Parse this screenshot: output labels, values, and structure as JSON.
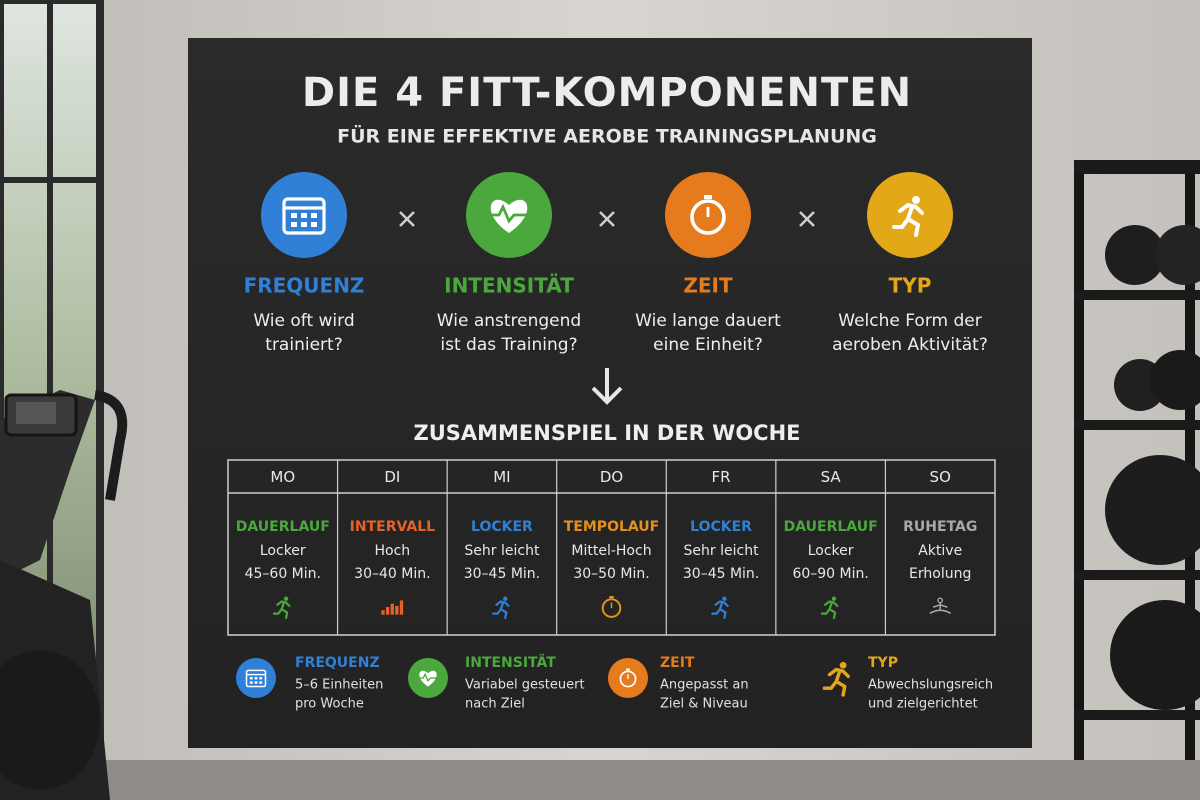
{
  "title": "DIE 4 FITT-KOMPONENTEN",
  "subtitle": "FÜR EINE EFFEKTIVE AEROBE TRAININGSPLANUNG",
  "components": [
    {
      "name": "FREQUENZ",
      "question": [
        "Wie oft wird",
        "trainiert?"
      ]
    },
    {
      "name": "INTENSITÄT",
      "question": [
        "Wie anstrengend",
        "ist das Training?"
      ]
    },
    {
      "name": "ZEIT",
      "question": [
        "Wie lange dauert",
        "eine Einheit?"
      ]
    },
    {
      "name": "TYP",
      "question": [
        "Welche Form der",
        "aeroben Aktivität?"
      ]
    }
  ],
  "week_title": "ZUSAMMENSPIEL IN DER WOCHE",
  "days": [
    {
      "day": "MO",
      "type": "DAUERLAUF",
      "details": [
        "Locker",
        "45–60 Min."
      ]
    },
    {
      "day": "DI",
      "type": "INTERVALL",
      "details": [
        "Hoch",
        "30–40 Min."
      ]
    },
    {
      "day": "MI",
      "type": "LOCKER",
      "details": [
        "Sehr leicht",
        "30–45 Min."
      ]
    },
    {
      "day": "DO",
      "type": "TEMPOLAUF",
      "details": [
        "Mittel-Hoch",
        "30–50 Min."
      ]
    },
    {
      "day": "FR",
      "type": "LOCKER",
      "details": [
        "Sehr leicht",
        "30–45 Min."
      ]
    },
    {
      "day": "SA",
      "type": "DAUERLAUF",
      "details": [
        "Locker",
        "60–90 Min."
      ]
    },
    {
      "day": "SO",
      "type": "RUHETAG",
      "details": [
        "Aktive",
        "Erholung"
      ]
    }
  ],
  "summary": [
    {
      "name": "FREQUENZ",
      "lines": [
        "5–6 Einheiten",
        "pro Woche"
      ]
    },
    {
      "name": "INTENSITÄT",
      "lines": [
        "Variabel gesteuert",
        "nach Ziel"
      ]
    },
    {
      "name": "ZEIT",
      "lines": [
        "Angepasst an",
        "Ziel & Niveau"
      ]
    },
    {
      "name": "TYP",
      "lines": [
        "Abwechslungsreich",
        "und zielgerichtet"
      ]
    }
  ]
}
